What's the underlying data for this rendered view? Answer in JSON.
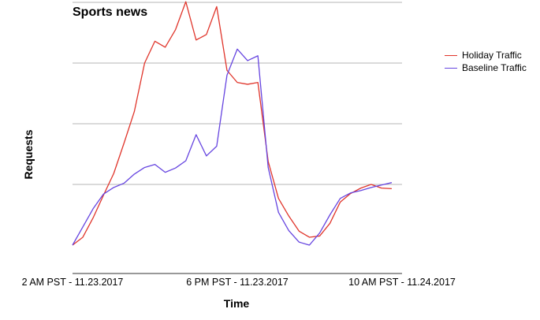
{
  "chart_data": {
    "type": "line",
    "title": "Sports news",
    "xlabel": "Time",
    "ylabel": "Requests",
    "x_tick_labels": [
      "2 AM PST - 11.23.2017",
      "6 PM PST - 11.23.2017",
      "10 AM PST - 11.24.2017"
    ],
    "x_tick_positions": [
      0,
      16,
      32
    ],
    "xlim": [
      0,
      32
    ],
    "ylim": [
      0,
      5
    ],
    "y_gridlines": [
      1,
      2,
      3,
      4,
      5
    ],
    "show_y_tick_labels": false,
    "legend_position": "top-right",
    "series": [
      {
        "name": "Holiday Traffic",
        "color": "#e0352b",
        "values": [
          0.0,
          0.13,
          0.45,
          0.82,
          1.18,
          1.68,
          2.2,
          3.0,
          3.36,
          3.26,
          3.55,
          4.01,
          3.38,
          3.47,
          3.93,
          2.88,
          2.68,
          2.65,
          2.68,
          1.38,
          0.77,
          0.48,
          0.23,
          0.13,
          0.15,
          0.36,
          0.71,
          0.85,
          0.94,
          1.0,
          0.94,
          0.93
        ]
      },
      {
        "name": "Baseline Traffic",
        "color": "#6645e0",
        "values": [
          0.0,
          0.3,
          0.6,
          0.84,
          0.95,
          1.02,
          1.17,
          1.28,
          1.33,
          1.2,
          1.27,
          1.39,
          1.82,
          1.47,
          1.63,
          2.8,
          3.23,
          3.04,
          3.12,
          1.28,
          0.54,
          0.24,
          0.05,
          0.0,
          0.2,
          0.5,
          0.77,
          0.86,
          0.9,
          0.95,
          0.99,
          1.03
        ]
      }
    ]
  }
}
